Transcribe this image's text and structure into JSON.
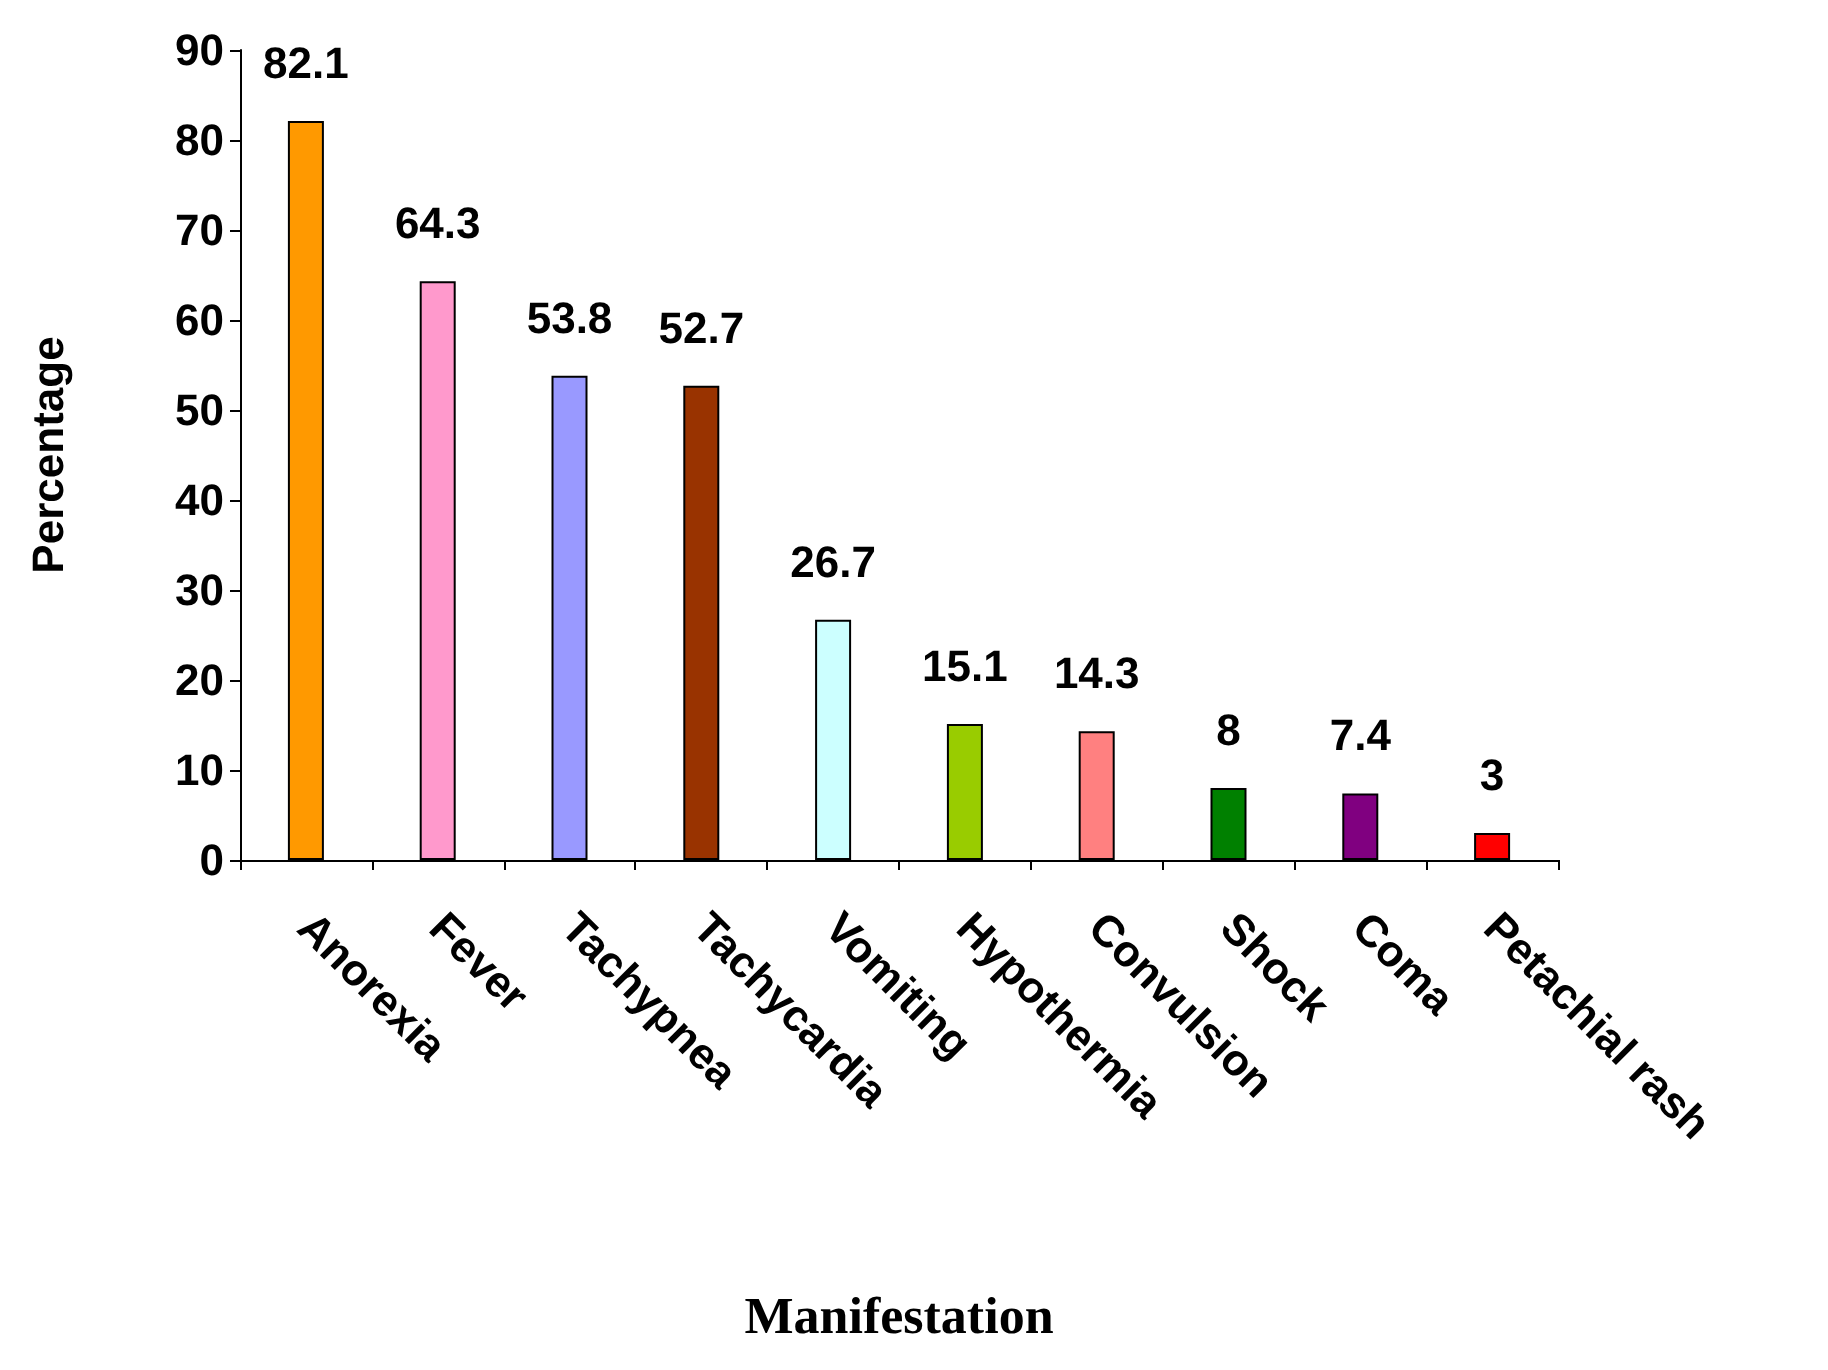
{
  "chart_data": {
    "type": "bar",
    "xlabel": "Manifestation",
    "ylabel": "Percentage",
    "categories": [
      "Anorexia",
      "Fever",
      "Tachypnea",
      "Tachycardia",
      "Vomiting",
      "Hypothermia",
      "Convulsion",
      "Shock",
      "Coma",
      "Petachial rash"
    ],
    "values": [
      82.1,
      64.3,
      53.8,
      52.7,
      26.7,
      15.1,
      14.3,
      8,
      7.4,
      3
    ],
    "colors": [
      "#ff9900",
      "#ff99cc",
      "#9999ff",
      "#993300",
      "#ccffff",
      "#99cc00",
      "#ff8080",
      "#008000",
      "#800080",
      "#ff0000"
    ],
    "ylim": [
      0,
      90
    ],
    "yticks": [
      0,
      10,
      20,
      30,
      40,
      50,
      60,
      70,
      80,
      90
    ],
    "data_labels": true,
    "grid": false
  }
}
